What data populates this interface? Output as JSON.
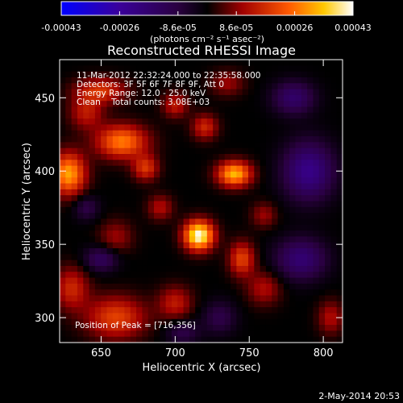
{
  "chart_data": {
    "type": "heatmap",
    "title": "Reconstructed RHESSI Image",
    "xlabel": "Heliocentric X (arcsec)",
    "ylabel": "Heliocentric Y (arcsec)",
    "xlim": [
      622,
      813
    ],
    "ylim": [
      283,
      476
    ],
    "x_ticks": [
      650,
      700,
      750,
      800
    ],
    "y_ticks": [
      300,
      350,
      400,
      450
    ],
    "colorbar": {
      "ticks": [
        "-0.00043",
        "-0.00026",
        "-8.6e-05",
        "8.6e-05",
        "0.00026",
        "0.00043"
      ],
      "unit_label": "(photons cm⁻² s⁻¹ asec⁻²)",
      "range": [
        -0.00043,
        0.00043
      ]
    },
    "info_lines": [
      "11-Mar-2012 22:32:24.000 to 22:35:58.000",
      "Detectors: 3F 5F 6F 7F 8F 9F, Att 0",
      "Energy Range: 12.0 - 25.0 keV",
      "Clean    Total counts: 3.08E+03"
    ],
    "peak_label": "Position of Peak = [716,356]",
    "peak": [
      716,
      356
    ],
    "footer_date": "2-May-2014 20:53",
    "sources": [
      {
        "x": 716,
        "y": 356,
        "sx": 7,
        "sy": 7,
        "amp": 0.00043
      },
      {
        "x": 740,
        "y": 398,
        "sx": 8,
        "sy": 6,
        "amp": 0.00033
      },
      {
        "x": 628,
        "y": 398,
        "sx": 8,
        "sy": 10,
        "amp": 0.00031
      },
      {
        "x": 664,
        "y": 420,
        "sx": 12,
        "sy": 8,
        "amp": 0.00027
      },
      {
        "x": 680,
        "y": 402,
        "sx": 6,
        "sy": 6,
        "amp": 0.00018
      },
      {
        "x": 745,
        "y": 340,
        "sx": 6,
        "sy": 8,
        "amp": 0.0002
      },
      {
        "x": 720,
        "y": 430,
        "sx": 6,
        "sy": 6,
        "amp": 0.00016
      },
      {
        "x": 700,
        "y": 445,
        "sx": 6,
        "sy": 6,
        "amp": 0.00014
      },
      {
        "x": 650,
        "y": 455,
        "sx": 12,
        "sy": 6,
        "amp": 0.00018
      },
      {
        "x": 640,
        "y": 440,
        "sx": 8,
        "sy": 8,
        "amp": 0.00014
      },
      {
        "x": 660,
        "y": 300,
        "sx": 14,
        "sy": 10,
        "amp": 0.0002
      },
      {
        "x": 630,
        "y": 320,
        "sx": 8,
        "sy": 10,
        "amp": 0.00016
      },
      {
        "x": 700,
        "y": 310,
        "sx": 8,
        "sy": 8,
        "amp": 0.00014
      },
      {
        "x": 760,
        "y": 320,
        "sx": 8,
        "sy": 8,
        "amp": 0.00012
      },
      {
        "x": 690,
        "y": 375,
        "sx": 6,
        "sy": 6,
        "amp": 0.00012
      },
      {
        "x": 760,
        "y": 370,
        "sx": 6,
        "sy": 6,
        "amp": 0.0001
      },
      {
        "x": 805,
        "y": 300,
        "sx": 6,
        "sy": 8,
        "amp": 0.00012
      },
      {
        "x": 660,
        "y": 355,
        "sx": 8,
        "sy": 8,
        "amp": 0.0001
      },
      {
        "x": 735,
        "y": 460,
        "sx": 8,
        "sy": 6,
        "amp": 0.0001
      },
      {
        "x": 790,
        "y": 400,
        "sx": 12,
        "sy": 14,
        "amp": -0.00022
      },
      {
        "x": 780,
        "y": 450,
        "sx": 10,
        "sy": 8,
        "amp": -0.00016
      },
      {
        "x": 785,
        "y": 340,
        "sx": 12,
        "sy": 10,
        "amp": -0.00018
      },
      {
        "x": 650,
        "y": 340,
        "sx": 8,
        "sy": 6,
        "amp": -0.00014
      },
      {
        "x": 730,
        "y": 300,
        "sx": 8,
        "sy": 8,
        "amp": -0.0001
      },
      {
        "x": 640,
        "y": 375,
        "sx": 6,
        "sy": 6,
        "amp": -0.0001
      },
      {
        "x": 705,
        "y": 290,
        "sx": 8,
        "sy": 6,
        "amp": -0.0001
      }
    ]
  }
}
